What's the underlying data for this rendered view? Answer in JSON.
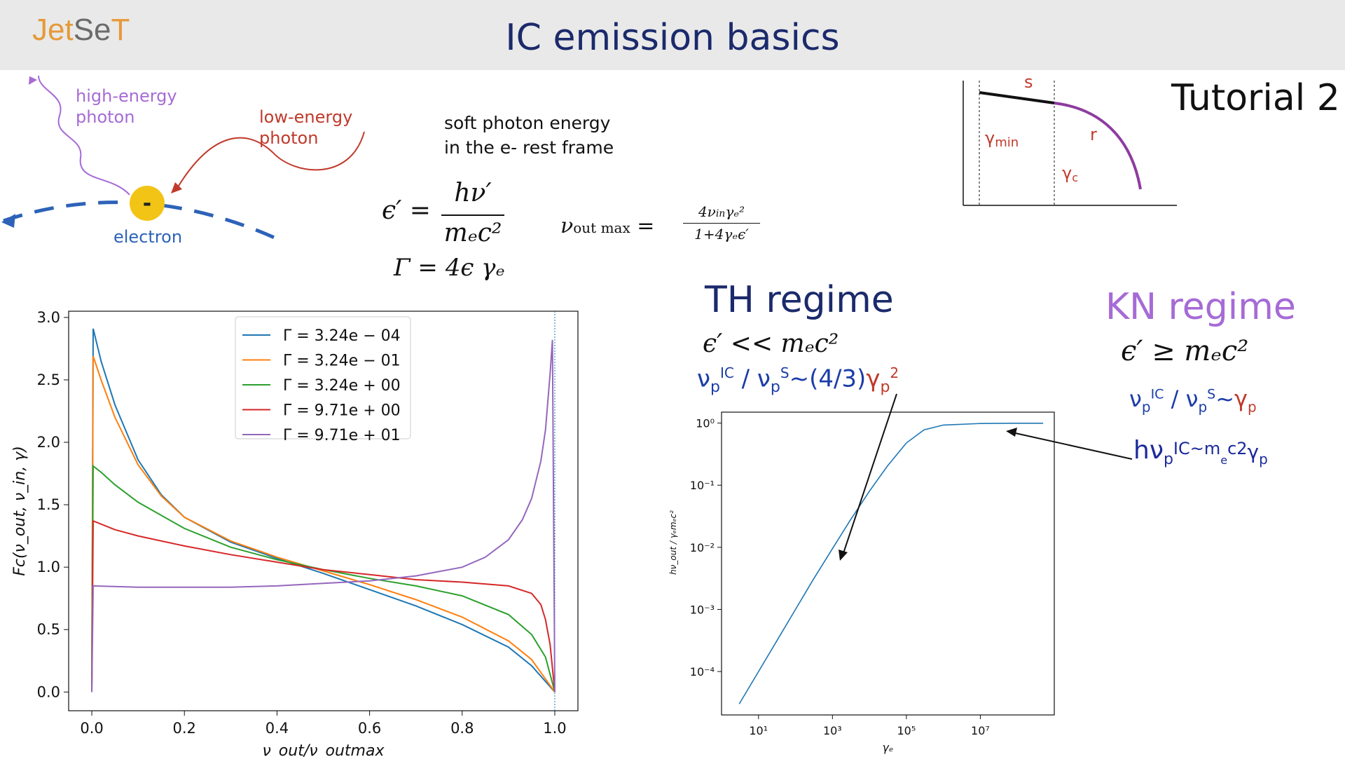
{
  "header": {
    "logo_part1": "Jet",
    "logo_part2": "Se",
    "logo_part3": "T",
    "title": "IC emission basics"
  },
  "tutorial_label": "Tutorial 2",
  "diagram": {
    "high_energy_line1": "high-energy",
    "high_energy_line2": "photon",
    "low_energy_line1": "low-energy",
    "low_energy_line2": "photon",
    "electron_label": "electron",
    "electron_sign": "-"
  },
  "soft_photon": {
    "line1": "soft photon  energy",
    "line2": "in the e- rest frame"
  },
  "equations": {
    "eps_lhs": "ϵ′ =",
    "eps_num": "hν′",
    "eps_den": "mₑc²",
    "gamma_eq": "Γ = 4ϵ γₑ",
    "nu_lhs": "ν",
    "nu_sub": "out  max",
    "nu_eq": "=",
    "nu_num": "4ν",
    "nu_num_sub": "in",
    "nu_num_rest": "γₑ²",
    "nu_den": "1+4γₑϵ′"
  },
  "distribution": {
    "s_label": "s",
    "r_label": "r",
    "gmin_label": "γ",
    "gmin_sub": "min",
    "gc_label": "γ",
    "gc_sub": "c"
  },
  "th_regime": {
    "title": "TH regime",
    "cond": "ϵ′  <<  mₑc²",
    "nu": "ν",
    "p1": "p",
    "ic": "IC",
    "slash": " / ν",
    "p2": "p",
    "s": "S",
    "approx": "~(4/3)",
    "gamma": "γ",
    "p3": "p",
    "sq": "2"
  },
  "kn_regime": {
    "title": "KN regime",
    "cond": "ϵ′ ≥ mₑc²",
    "nu": "ν",
    "p1": "p",
    "ic": "IC",
    "slash": " / ν",
    "p2": "p",
    "s": "S",
    "approx": "~",
    "gamma": "γ",
    "p3": "p",
    "hnu_h": "hν",
    "hnu_p": "p",
    "hnu_ic": "IC~m",
    "hnu_e": "e",
    "hnu_c2": "c2",
    "hnu_g": "γ",
    "hnu_gp": "p"
  },
  "chart_data": [
    {
      "type": "line",
      "xlabel": "ν_out/ν_outmax",
      "ylabel": "Fc(ν_out, ν_in, γ)",
      "xlim": [
        -0.05,
        1.05
      ],
      "ylim": [
        -0.15,
        3.05
      ],
      "xticks": [
        "0.0",
        "0.2",
        "0.4",
        "0.6",
        "0.8",
        "1.0"
      ],
      "xtick_values": [
        0.0,
        0.2,
        0.4,
        0.6,
        0.8,
        1.0
      ],
      "yticks": [
        "0.0",
        "0.5",
        "1.0",
        "1.5",
        "2.0",
        "2.5",
        "3.0"
      ],
      "ytick_values": [
        0.0,
        0.5,
        1.0,
        1.5,
        2.0,
        2.5,
        3.0
      ],
      "legend_position": "top-right",
      "vline_x": 1.0,
      "series": [
        {
          "name": "Γ = 3.24e − 04",
          "color": "#1f77b4",
          "x": [
            0,
            0.003,
            0.02,
            0.05,
            0.1,
            0.15,
            0.2,
            0.3,
            0.4,
            0.5,
            0.6,
            0.7,
            0.8,
            0.9,
            0.95,
            1.0
          ],
          "y": [
            0,
            2.91,
            2.65,
            2.3,
            1.86,
            1.58,
            1.4,
            1.2,
            1.07,
            0.95,
            0.82,
            0.69,
            0.54,
            0.36,
            0.21,
            0.0
          ]
        },
        {
          "name": "Γ = 3.24e − 01",
          "color": "#ff7f0e",
          "x": [
            0,
            0.003,
            0.02,
            0.05,
            0.1,
            0.15,
            0.2,
            0.3,
            0.4,
            0.5,
            0.6,
            0.7,
            0.8,
            0.9,
            0.95,
            1.0
          ],
          "y": [
            0,
            2.69,
            2.5,
            2.2,
            1.82,
            1.57,
            1.4,
            1.21,
            1.08,
            0.97,
            0.86,
            0.74,
            0.6,
            0.41,
            0.26,
            0.0
          ]
        },
        {
          "name": "Γ = 3.24e + 00",
          "color": "#2ca02c",
          "x": [
            0,
            0.003,
            0.02,
            0.05,
            0.1,
            0.2,
            0.3,
            0.4,
            0.5,
            0.6,
            0.7,
            0.8,
            0.9,
            0.95,
            0.98,
            1.0
          ],
          "y": [
            0,
            1.81,
            1.76,
            1.66,
            1.52,
            1.31,
            1.16,
            1.06,
            0.98,
            0.91,
            0.85,
            0.77,
            0.62,
            0.46,
            0.28,
            0.0
          ]
        },
        {
          "name": "Γ = 9.71e + 00",
          "color": "#d62728",
          "x": [
            0,
            0.003,
            0.05,
            0.1,
            0.2,
            0.3,
            0.4,
            0.5,
            0.6,
            0.7,
            0.8,
            0.9,
            0.95,
            0.97,
            0.98,
            0.99,
            1.0
          ],
          "y": [
            0,
            1.37,
            1.3,
            1.25,
            1.17,
            1.1,
            1.04,
            0.98,
            0.94,
            0.9,
            0.88,
            0.85,
            0.79,
            0.7,
            0.58,
            0.38,
            0.0
          ]
        },
        {
          "name": "Γ = 9.71e + 01",
          "color": "#9467bd",
          "x": [
            0,
            0.003,
            0.1,
            0.2,
            0.3,
            0.4,
            0.5,
            0.6,
            0.7,
            0.8,
            0.85,
            0.9,
            0.93,
            0.95,
            0.97,
            0.98,
            0.99,
            0.995,
            1.0
          ],
          "y": [
            0,
            0.85,
            0.84,
            0.84,
            0.84,
            0.85,
            0.87,
            0.89,
            0.93,
            1.0,
            1.08,
            1.22,
            1.38,
            1.55,
            1.85,
            2.1,
            2.55,
            2.82,
            0.0
          ]
        }
      ]
    },
    {
      "type": "line",
      "xlabel": "γₑ",
      "ylabel": "hν_out / γₑmₑc²",
      "xscale": "log",
      "yscale": "log",
      "xlim": [
        1,
        1000000000.0
      ],
      "ylim": [
        2e-05,
        1.5
      ],
      "xticks": [
        "10¹",
        "10³",
        "10⁵",
        "10⁷"
      ],
      "xtick_values": [
        10,
        1000,
        100000,
        10000000
      ],
      "yticks": [
        "10⁰",
        "10⁻¹",
        "10⁻²",
        "10⁻³",
        "10⁻⁴"
      ],
      "ytick_values": [
        1,
        0.1,
        0.01,
        0.001,
        0.0001
      ],
      "series": [
        {
          "color": "#1f77b4",
          "x": [
            3,
            10,
            30,
            100,
            300,
            1000,
            3000,
            10000,
            30000,
            100000,
            300000,
            1000000,
            10000000,
            100000000,
            500000000
          ],
          "y": [
            3e-05,
            0.0001,
            0.0003,
            0.001,
            0.003,
            0.0095,
            0.027,
            0.08,
            0.2,
            0.48,
            0.78,
            0.93,
            0.985,
            0.995,
            0.996
          ]
        }
      ]
    }
  ]
}
